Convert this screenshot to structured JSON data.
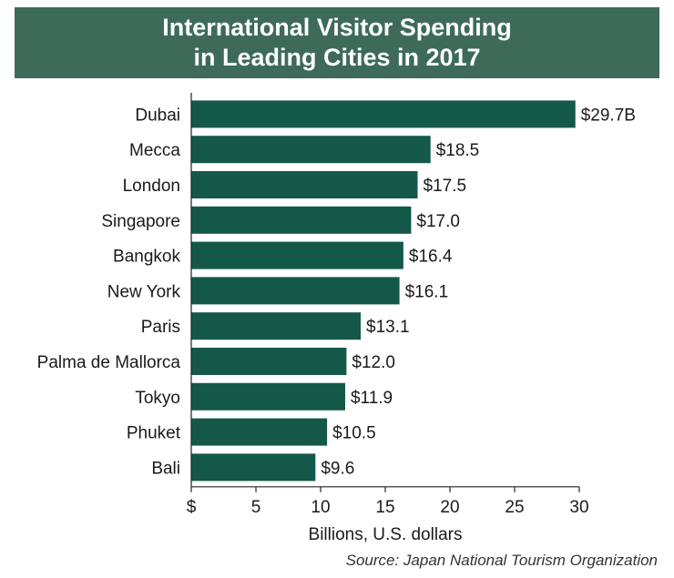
{
  "chart_data": {
    "type": "bar",
    "orientation": "horizontal",
    "title_lines": [
      "International Visitor Spending",
      "in Leading Cities in 2017"
    ],
    "categories": [
      "Dubai",
      "Mecca",
      "London",
      "Singapore",
      "Bangkok",
      "New York",
      "Paris",
      "Palma de Mallorca",
      "Tokyo",
      "Phuket",
      "Bali"
    ],
    "values": [
      29.7,
      18.5,
      17.5,
      17.0,
      16.4,
      16.1,
      13.1,
      12.0,
      11.9,
      10.5,
      9.6
    ],
    "value_labels": [
      "$29.7B",
      "$18.5",
      "$17.5",
      "$17.0",
      "$16.4",
      "$16.1",
      "$13.1",
      "$12.0",
      "$11.9",
      "$10.5",
      "$9.6"
    ],
    "xlabel": "Billions, U.S. dollars",
    "xlim": [
      0,
      30
    ],
    "xticks": [
      0,
      5,
      10,
      15,
      20,
      25,
      30
    ],
    "xtick_labels": [
      "$",
      "5",
      "10",
      "15",
      "20",
      "25",
      "30"
    ],
    "bar_color": "#14584a",
    "grid": false,
    "source": "Source: Japan National Tourism Organization"
  },
  "colors": {
    "banner": "#3d6b58",
    "bar": "#14584a"
  }
}
